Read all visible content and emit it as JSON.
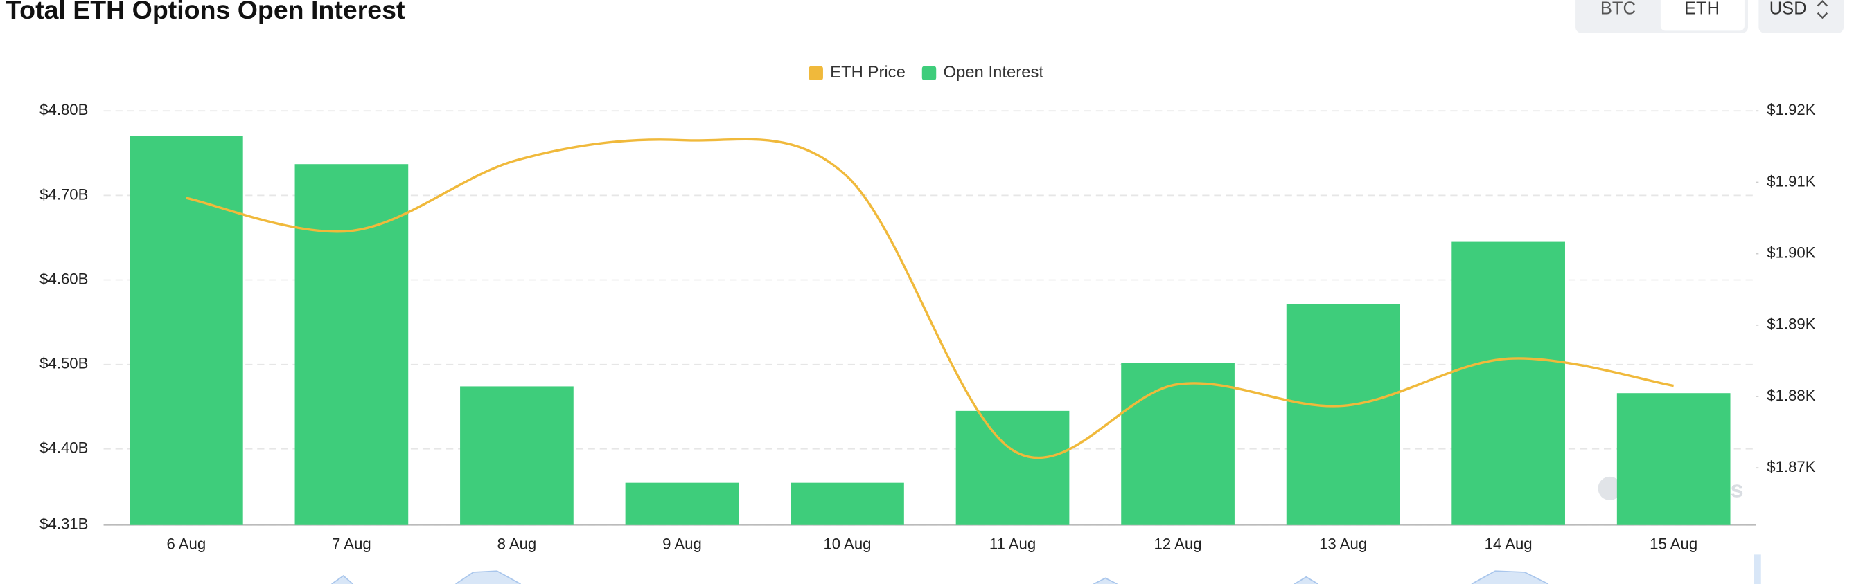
{
  "header": {
    "title": "Total ETH Options Open Interest",
    "tabs": [
      "BTC",
      "ETH"
    ],
    "currency": "USD"
  },
  "watermark": "coinglass",
  "chart_data": {
    "type": "bar-line",
    "categories": [
      "6 Aug",
      "7 Aug",
      "8 Aug",
      "9 Aug",
      "10 Aug",
      "11 Aug",
      "12 Aug",
      "13 Aug",
      "14 Aug",
      "15 Aug"
    ],
    "series": [
      {
        "name": "ETH Price",
        "color": "#f0b93b",
        "type": "line",
        "axis": "y2",
        "values": [
          1907.8,
          1903.2,
          1913.1,
          1915.9,
          1910.8,
          1872.5,
          1881.7,
          1878.7,
          1885.3,
          1881.5
        ]
      },
      {
        "name": "Open Interest",
        "color": "#3ecd7b",
        "type": "bar",
        "values": [
          4.77,
          4.737,
          4.474,
          4.36,
          4.36,
          4.445,
          4.502,
          4.571,
          4.645,
          4.466
        ]
      }
    ],
    "ylim": [
      4.31,
      4.8
    ],
    "yticks": [
      {
        "value": 4.31,
        "label": "$4.31B"
      },
      {
        "value": 4.4,
        "label": "$4.40B"
      },
      {
        "value": 4.5,
        "label": "$4.50B"
      },
      {
        "value": 4.6,
        "label": "$4.60B"
      },
      {
        "value": 4.7,
        "label": "$4.70B"
      },
      {
        "value": 4.8,
        "label": "$4.80B"
      }
    ],
    "y2lim": [
      1862,
      1920
    ],
    "y2ticks": [
      {
        "value": 1870,
        "label": "$1.87K"
      },
      {
        "value": 1880,
        "label": "$1.88K"
      },
      {
        "value": 1890,
        "label": "$1.89K"
      },
      {
        "value": 1900,
        "label": "$1.90K"
      },
      {
        "value": 1910,
        "label": "$1.91K"
      },
      {
        "value": 1920,
        "label": "$1.92K"
      }
    ],
    "grid": true
  }
}
